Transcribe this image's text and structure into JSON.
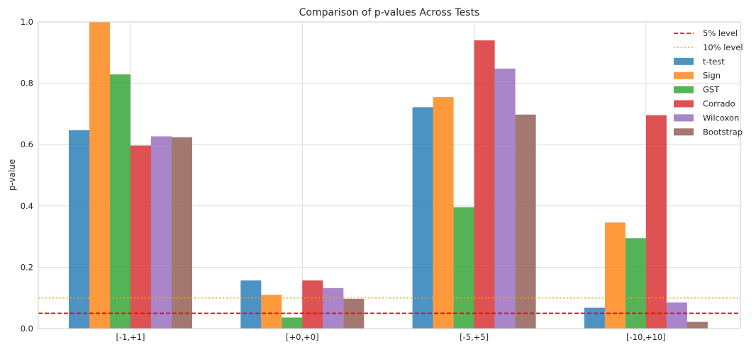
{
  "chart_data": {
    "type": "bar",
    "title": "Comparison of p-values Across Tests",
    "xlabel": "",
    "ylabel": "p-value",
    "ylim": [
      0,
      1.0
    ],
    "yticks": [
      "0.0",
      "0.2",
      "0.4",
      "0.6",
      "0.8",
      "1.0"
    ],
    "categories": [
      "[-1,+1]",
      "[+0,+0]",
      "[-5,+5]",
      "[-10,+10]"
    ],
    "grid": true,
    "legend_position": "top-right",
    "series": [
      {
        "name": "t-test",
        "color": "#1f77b4",
        "values": [
          0.647,
          0.157,
          0.722,
          0.068
        ]
      },
      {
        "name": "Sign",
        "color": "#ff7f0e",
        "values": [
          1.0,
          0.11,
          0.755,
          0.346
        ]
      },
      {
        "name": "GST",
        "color": "#2ca02c",
        "values": [
          0.829,
          0.036,
          0.396,
          0.295
        ]
      },
      {
        "name": "Corrado",
        "color": "#d62728",
        "values": [
          0.597,
          0.157,
          0.94,
          0.696
        ]
      },
      {
        "name": "Wilcoxon",
        "color": "#9467bd",
        "values": [
          0.627,
          0.132,
          0.848,
          0.085
        ]
      },
      {
        "name": "Bootstrap",
        "color": "#8c564b",
        "values": [
          0.624,
          0.097,
          0.698,
          0.022
        ]
      }
    ],
    "reference_lines": [
      {
        "name": "5% level",
        "value": 0.05,
        "color": "#ff0000",
        "style": "dashed"
      },
      {
        "name": "10% level",
        "value": 0.1,
        "color": "#ffa500",
        "style": "dotted"
      }
    ]
  }
}
